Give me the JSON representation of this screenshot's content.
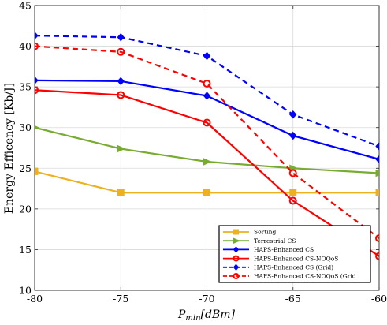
{
  "chart_data": {
    "type": "line",
    "x": [
      -80,
      -75,
      -70,
      -65,
      -60
    ],
    "xlabel_main": "P",
    "xlabel_sub": "min",
    "xlabel_unit": "[dBm]",
    "ylabel": "Energy Efficency [Kb/J]",
    "xlim": [
      -80,
      -60
    ],
    "ylim": [
      10,
      45
    ],
    "xticks": [
      -80,
      -75,
      -70,
      -65,
      -60
    ],
    "yticks": [
      10,
      15,
      20,
      25,
      30,
      35,
      40,
      45
    ],
    "grid": true,
    "legend_position": "bottom-right",
    "series": [
      {
        "name": "Sorting",
        "values": [
          24.6,
          22.0,
          22.0,
          22.0,
          22.0
        ],
        "color": "#EDB120",
        "dash": "solid",
        "marker": "square"
      },
      {
        "name": "Terrestrial CS",
        "values": [
          30.0,
          27.4,
          25.8,
          25.0,
          24.4
        ],
        "color": "#77AC30",
        "dash": "solid",
        "marker": "triangle-right"
      },
      {
        "name": "HAPS-Enhanced CS",
        "values": [
          35.8,
          35.7,
          33.9,
          29.0,
          26.1
        ],
        "color": "#0000FF",
        "dash": "solid",
        "marker": "diamond"
      },
      {
        "name": "HAPS-Enhanced CS-NOQoS",
        "values": [
          34.6,
          34.0,
          30.6,
          21.0,
          14.2
        ],
        "color": "#FF0000",
        "dash": "solid",
        "marker": "circle"
      },
      {
        "name": "HAPS-Enhanced CS (Grid)",
        "values": [
          41.3,
          41.1,
          38.8,
          31.6,
          27.7
        ],
        "color": "#0000FF",
        "dash": "dashed",
        "marker": "diamond"
      },
      {
        "name": "HAPS-Enhanced CS-NOQoS (Grid",
        "values": [
          40.0,
          39.3,
          35.4,
          24.4,
          16.4
        ],
        "color": "#FF0000",
        "dash": "dashed",
        "marker": "circle"
      }
    ]
  }
}
